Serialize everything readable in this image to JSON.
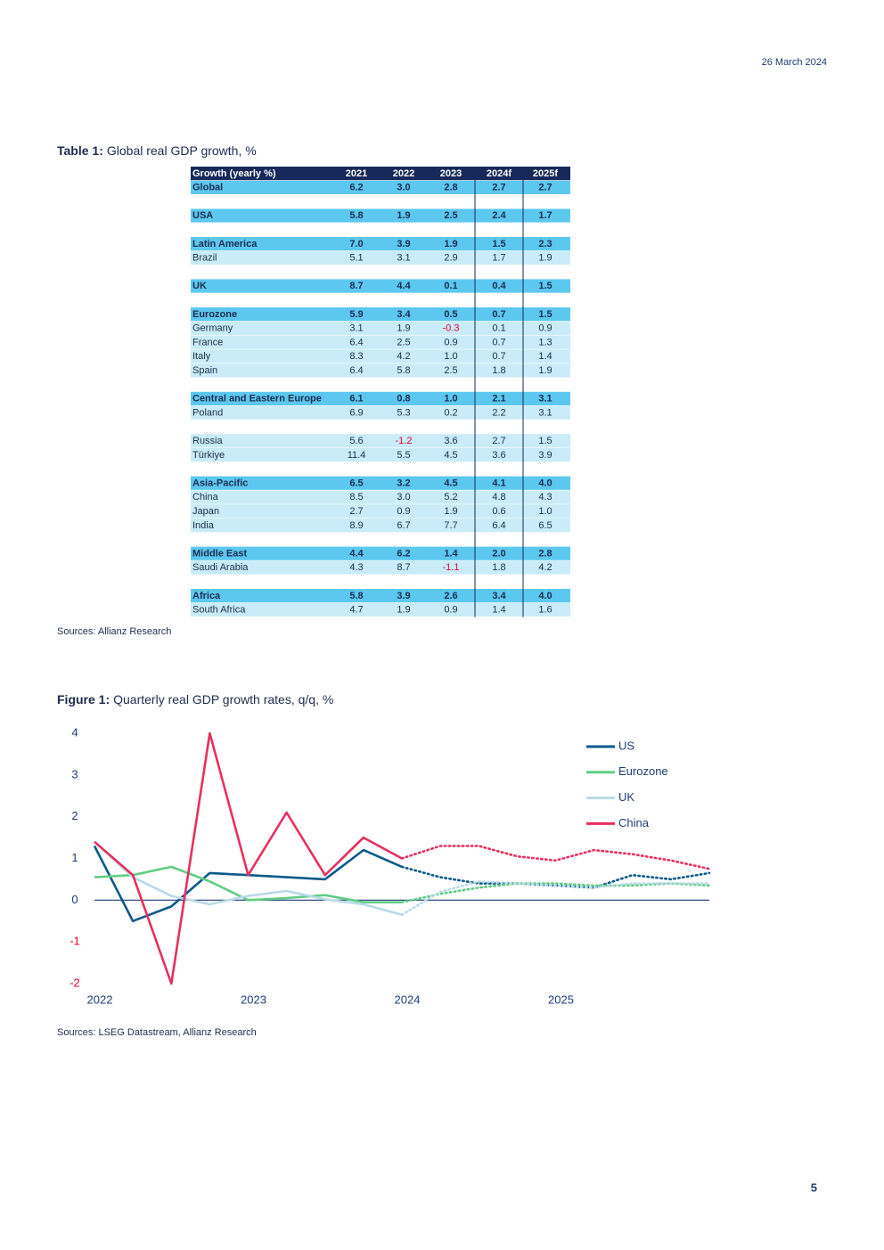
{
  "header": {
    "date": "26 March 2024"
  },
  "table": {
    "label": "Table 1:",
    "title": "Global real GDP growth, %",
    "columns": [
      "Growth (yearly %)",
      "2021",
      "2022",
      "2023",
      "2024f",
      "2025f"
    ],
    "groups": [
      {
        "head": [
          "Global",
          "6.2",
          "3.0",
          "2.8",
          "2.7",
          "2.7"
        ],
        "rows": []
      },
      {
        "head": [
          "USA",
          "5.8",
          "1.9",
          "2.5",
          "2.4",
          "1.7"
        ],
        "rows": []
      },
      {
        "head": [
          "Latin America",
          "7.0",
          "3.9",
          "1.9",
          "1.5",
          "2.3"
        ],
        "rows": [
          [
            "Brazil",
            "5.1",
            "3.1",
            "2.9",
            "1.7",
            "1.9"
          ]
        ]
      },
      {
        "head": [
          "UK",
          "8.7",
          "4.4",
          "0.1",
          "0.4",
          "1.5"
        ],
        "rows": []
      },
      {
        "head": [
          "Eurozone",
          "5.9",
          "3.4",
          "0.5",
          "0.7",
          "1.5"
        ],
        "rows": [
          [
            "Germany",
            "3.1",
            "1.9",
            "-0.3",
            "0.1",
            "0.9"
          ],
          [
            "France",
            "6.4",
            "2.5",
            "0.9",
            "0.7",
            "1.3"
          ],
          [
            "Italy",
            "8.3",
            "4.2",
            "1.0",
            "0.7",
            "1.4"
          ],
          [
            "Spain",
            "6.4",
            "5.8",
            "2.5",
            "1.8",
            "1.9"
          ]
        ]
      },
      {
        "head": [
          "Central and Eastern Europe",
          "6.1",
          "0.8",
          "1.0",
          "2.1",
          "3.1"
        ],
        "rows": [
          [
            "Poland",
            "6.9",
            "5.3",
            "0.2",
            "2.2",
            "3.1"
          ]
        ]
      },
      {
        "rows": [
          [
            "Russia",
            "5.6",
            "-1.2",
            "3.6",
            "2.7",
            "1.5"
          ],
          [
            "Türkiye",
            "11.4",
            "5.5",
            "4.5",
            "3.6",
            "3.9"
          ]
        ]
      },
      {
        "head": [
          "Asia-Pacific",
          "6.5",
          "3.2",
          "4.5",
          "4.1",
          "4.0"
        ],
        "rows": [
          [
            "China",
            "8.5",
            "3.0",
            "5.2",
            "4.8",
            "4.3"
          ],
          [
            "Japan",
            "2.7",
            "0.9",
            "1.9",
            "0.6",
            "1.0"
          ],
          [
            "India",
            "8.9",
            "6.7",
            "7.7",
            "6.4",
            "6.5"
          ]
        ]
      },
      {
        "head": [
          "Middle East",
          "4.4",
          "6.2",
          "1.4",
          "2.0",
          "2.8"
        ],
        "rows": [
          [
            "Saudi Arabia",
            "4.3",
            "8.7",
            "-1.1",
            "1.8",
            "4.2"
          ]
        ]
      },
      {
        "head": [
          "Africa",
          "5.8",
          "3.9",
          "2.6",
          "3.4",
          "4.0"
        ],
        "rows": [
          [
            "South Africa",
            "4.7",
            "1.9",
            "0.9",
            "1.4",
            "1.6"
          ]
        ]
      }
    ],
    "source": "Sources: Allianz Research"
  },
  "chart_data": {
    "type": "line",
    "label": "Figure 1:",
    "title": "Quarterly real GDP growth rates, q/q, %",
    "x": [
      2022,
      2022.25,
      2022.5,
      2022.75,
      2023,
      2023.25,
      2023.5,
      2023.75,
      2024,
      2024.25,
      2024.5,
      2024.75,
      2025,
      2025.25,
      2025.5,
      2025.75,
      2026
    ],
    "xlim": [
      2022,
      2026
    ],
    "xticks": [
      2022,
      2023,
      2024,
      2025
    ],
    "ylim": [
      -2,
      4
    ],
    "yticks": [
      -2,
      -1,
      0,
      1,
      2,
      3,
      4
    ],
    "forecast_start": 2024,
    "series": [
      {
        "name": "US",
        "color": "#0b5a8a",
        "values": [
          1.3,
          -0.5,
          -0.15,
          0.65,
          0.6,
          0.55,
          0.5,
          1.2,
          0.8,
          0.55,
          0.4,
          0.4,
          0.35,
          0.3,
          0.6,
          0.5,
          0.65
        ]
      },
      {
        "name": "Eurozone",
        "color": "#5fcd83",
        "values": [
          0.55,
          0.6,
          0.8,
          0.45,
          0.0,
          0.05,
          0.12,
          -0.05,
          -0.05,
          0.15,
          0.3,
          0.4,
          0.4,
          0.35,
          0.35,
          0.4,
          0.35
        ]
      },
      {
        "name": "UK",
        "color": "#b8dae7",
        "values": [
          1.4,
          0.55,
          0.1,
          -0.1,
          0.1,
          0.22,
          0.02,
          -0.1,
          -0.35,
          0.2,
          0.45,
          0.4,
          0.35,
          0.3,
          0.4,
          0.4,
          0.4
        ]
      },
      {
        "name": "China",
        "color": "#e8305e",
        "values": [
          1.4,
          0.6,
          -2.0,
          4.0,
          0.6,
          2.1,
          0.6,
          1.5,
          1.0,
          1.3,
          1.3,
          1.05,
          0.95,
          1.2,
          1.1,
          0.95,
          0.75
        ]
      }
    ],
    "source": "Sources: LSEG Datastream, Allianz Research"
  },
  "footer": {
    "page": 5
  }
}
